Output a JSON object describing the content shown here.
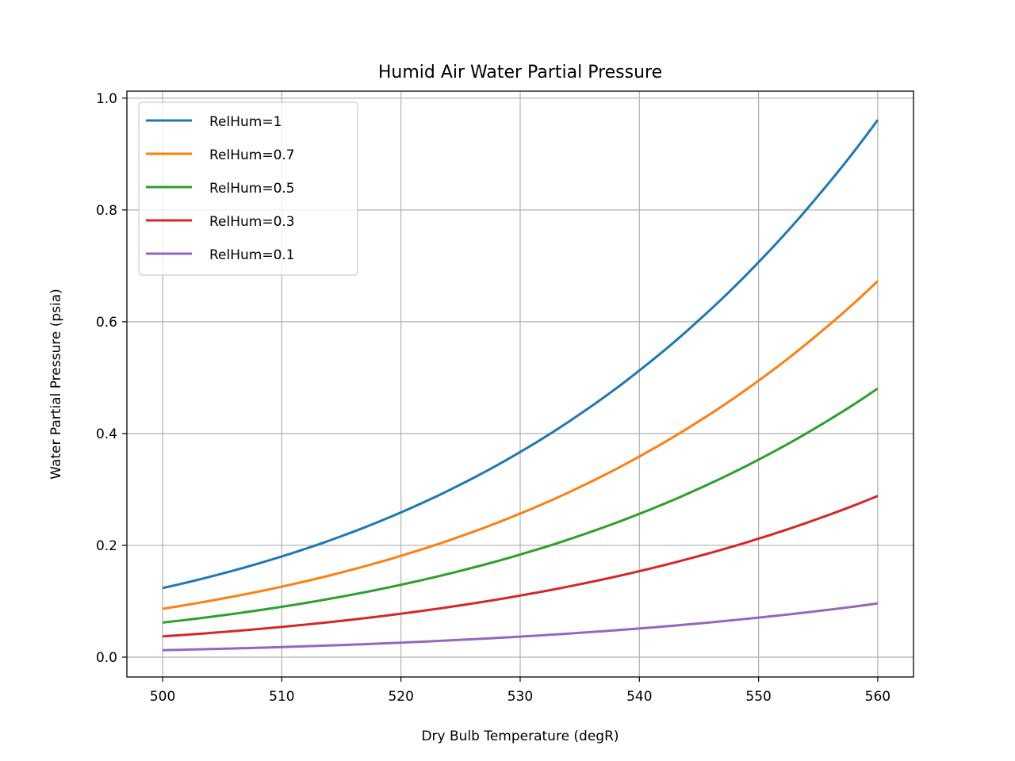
{
  "chart_data": {
    "type": "line",
    "title": "Humid Air Water Partial Pressure",
    "xlabel": "Dry Bulb Temperature (degR)",
    "ylabel": "Water Partial Pressure (psia)",
    "xlim": [
      497,
      563
    ],
    "ylim": [
      -0.0355,
      1.0125
    ],
    "xticks": [
      500,
      510,
      520,
      530,
      540,
      550,
      560
    ],
    "yticks": [
      0.0,
      0.2,
      0.4,
      0.6,
      0.8,
      1.0
    ],
    "xtick_labels": [
      "500",
      "510",
      "520",
      "530",
      "540",
      "550",
      "560"
    ],
    "ytick_labels": [
      "0.0",
      "0.2",
      "0.4",
      "0.6",
      "0.8",
      "1.0"
    ],
    "grid": true,
    "legend_position": "upper-left",
    "x": [
      500,
      505,
      510,
      515,
      520,
      525,
      530,
      535,
      540,
      545,
      550,
      555,
      560
    ],
    "series": [
      {
        "name": "RelHum=1",
        "color": "#1f77b4",
        "values": [
          0.1236,
          0.1495,
          0.1802,
          0.2164,
          0.259,
          0.3089,
          0.367,
          0.4346,
          0.5128,
          0.603,
          0.7066,
          0.8254,
          0.9611
        ]
      },
      {
        "name": "RelHum=0.7",
        "color": "#ff7f0e",
        "values": [
          0.0865,
          0.1047,
          0.1261,
          0.1515,
          0.1813,
          0.2162,
          0.2569,
          0.3042,
          0.359,
          0.4221,
          0.4946,
          0.5778,
          0.6728
        ]
      },
      {
        "name": "RelHum=0.5",
        "color": "#2ca02c",
        "values": [
          0.0618,
          0.0748,
          0.0901,
          0.1082,
          0.1295,
          0.1545,
          0.1835,
          0.2173,
          0.2564,
          0.3015,
          0.3533,
          0.4127,
          0.4806
        ]
      },
      {
        "name": "RelHum=0.3",
        "color": "#d62728",
        "values": [
          0.0371,
          0.0449,
          0.0541,
          0.0649,
          0.0777,
          0.0927,
          0.1101,
          0.1304,
          0.1538,
          0.1809,
          0.212,
          0.2476,
          0.2883
        ]
      },
      {
        "name": "RelHum=0.1",
        "color": "#9467bd",
        "values": [
          0.0124,
          0.015,
          0.018,
          0.0216,
          0.0259,
          0.0309,
          0.0367,
          0.0435,
          0.0513,
          0.0603,
          0.0707,
          0.0825,
          0.0961
        ]
      }
    ]
  }
}
